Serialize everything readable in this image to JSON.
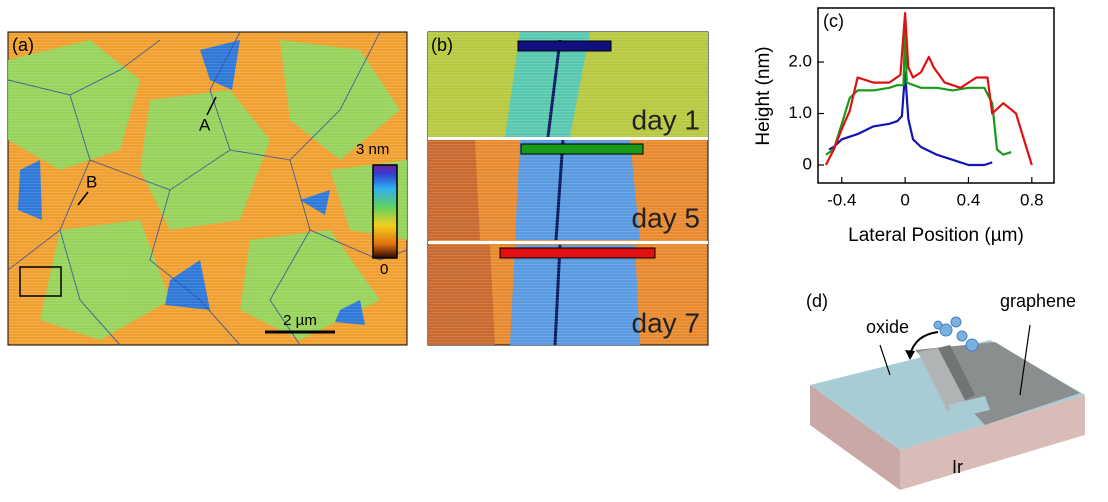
{
  "panels": {
    "a": {
      "label": "(a)",
      "markers": [
        "A",
        "B"
      ],
      "colorbar": {
        "max": "3 nm",
        "min": "0"
      },
      "scale_bar": "2 µm"
    },
    "b": {
      "label": "(b)",
      "days": [
        "day 1",
        "day 5",
        "day 7"
      ]
    },
    "d": {
      "label": "(d)",
      "oxide": "oxide",
      "graphene": "graphene",
      "substrate": "Ir"
    }
  },
  "chart_data": {
    "type": "line",
    "label": "(c)",
    "xlabel": "Lateral Position (µm)",
    "ylabel": "Height (nm)",
    "xlim": [
      -0.55,
      0.94
    ],
    "ylim": [
      -0.35,
      3.05
    ],
    "xticks": [
      -0.4,
      0,
      0.4,
      0.8
    ],
    "yticks": [
      0,
      {
        "value": 1,
        "label": "1.0"
      },
      {
        "value": 2,
        "label": "2.0"
      }
    ],
    "series": [
      {
        "color": "#1414b4",
        "x": [
          -0.48,
          -0.45,
          -0.4,
          -0.3,
          -0.2,
          -0.1,
          -0.05,
          -0.02,
          0,
          0.02,
          0.05,
          0.1,
          0.2,
          0.3,
          0.4,
          0.5,
          0.55
        ],
        "values": [
          0.3,
          0.35,
          0.5,
          0.6,
          0.75,
          0.8,
          0.85,
          0.95,
          1.8,
          0.9,
          0.5,
          0.35,
          0.2,
          0.1,
          0.0,
          0.0,
          0.05
        ]
      },
      {
        "color": "#1a9a1a",
        "x": [
          -0.5,
          -0.45,
          -0.4,
          -0.35,
          -0.3,
          -0.2,
          -0.1,
          -0.05,
          -0.01,
          0,
          0.01,
          0.1,
          0.2,
          0.3,
          0.4,
          0.5,
          0.55,
          0.58,
          0.62,
          0.67
        ],
        "values": [
          0.2,
          0.3,
          0.8,
          1.3,
          1.45,
          1.45,
          1.5,
          1.55,
          1.55,
          2.8,
          1.6,
          1.5,
          1.5,
          1.45,
          1.5,
          1.5,
          1.2,
          0.3,
          0.2,
          0.25
        ]
      },
      {
        "color": "#e01010",
        "x": [
          -0.5,
          -0.45,
          -0.4,
          -0.35,
          -0.3,
          -0.2,
          -0.1,
          -0.03,
          0,
          0.02,
          0.05,
          0.1,
          0.15,
          0.18,
          0.25,
          0.35,
          0.45,
          0.52,
          0.55,
          0.62,
          0.7,
          0.75,
          0.8
        ],
        "values": [
          0.0,
          0.3,
          0.7,
          1.05,
          1.7,
          1.6,
          1.6,
          1.75,
          2.95,
          1.9,
          1.7,
          1.8,
          2.1,
          1.9,
          1.6,
          1.5,
          1.7,
          1.7,
          1.0,
          1.2,
          1.0,
          0.5,
          0.0
        ]
      }
    ]
  }
}
